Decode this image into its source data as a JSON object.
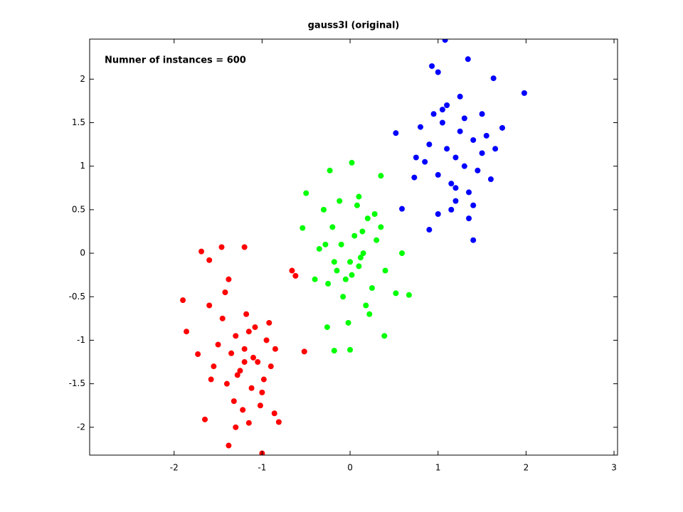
{
  "chart_data": {
    "type": "scatter",
    "title": "gauss3l (original)",
    "annotation": "Numner of instances = 600",
    "xlim": [
      -2.96,
      3.04
    ],
    "ylim": [
      -2.32,
      2.46
    ],
    "xticks": [
      -2,
      -1,
      0,
      1,
      2,
      3
    ],
    "yticks": [
      -2,
      -1.5,
      -1,
      -0.5,
      0,
      0.5,
      1,
      1.5,
      2
    ],
    "grid": false,
    "series": [
      {
        "color": "#ff0000",
        "x": [
          -1.9,
          -1.86,
          -1.69,
          -1.6,
          -1.46,
          -1.2,
          -1.0,
          -1.38,
          -1.65,
          -1.73,
          -1.58,
          -0.66,
          -0.62,
          -0.52,
          -0.81,
          -0.86,
          -1.2,
          -1.1,
          -1.3,
          -1.25,
          -1.15,
          -1.05,
          -1.35,
          -1.4,
          -0.95,
          -0.9,
          -1.5,
          -1.45,
          -1.0,
          -1.28,
          -1.12,
          -1.18,
          -1.32,
          -1.08,
          -0.98,
          -1.22,
          -1.55,
          -0.85,
          -1.6,
          -1.42,
          -1.02,
          -1.3,
          -1.15,
          -0.92,
          -1.38,
          -1.2
        ],
        "values": [
          -0.54,
          -0.9,
          0.02,
          -0.08,
          0.07,
          0.07,
          -2.3,
          -2.21,
          -1.91,
          -1.16,
          -1.45,
          -0.2,
          -0.26,
          -1.13,
          -1.94,
          -1.84,
          -1.1,
          -1.2,
          -0.95,
          -1.35,
          -0.9,
          -1.25,
          -1.15,
          -1.5,
          -1.0,
          -1.3,
          -1.05,
          -0.75,
          -1.6,
          -1.4,
          -1.55,
          -0.7,
          -1.7,
          -0.85,
          -1.45,
          -1.8,
          -1.3,
          -1.1,
          -0.6,
          -0.45,
          -1.75,
          -2.0,
          -1.95,
          -0.8,
          -0.3,
          -1.25
        ]
      },
      {
        "color": "#00ff00",
        "x": [
          -0.23,
          0.02,
          0.35,
          -0.5,
          -0.54,
          0.67,
          0.52,
          0.39,
          -0.18,
          0.0,
          -0.26,
          0.59,
          0.0,
          0.1,
          -0.1,
          0.05,
          -0.05,
          0.15,
          -0.15,
          0.2,
          -0.2,
          0.12,
          0.25,
          -0.25,
          0.3,
          -0.3,
          0.08,
          -0.08,
          0.18,
          -0.12,
          0.02,
          0.35,
          -0.35,
          0.22,
          -0.4,
          0.4,
          0.1,
          -0.18,
          0.28,
          -0.02,
          0.14,
          -0.28
        ],
        "values": [
          0.95,
          1.04,
          0.89,
          0.69,
          0.29,
          -0.48,
          -0.46,
          -0.95,
          -1.12,
          -1.11,
          -0.85,
          0.0,
          -0.1,
          -0.15,
          0.1,
          0.2,
          -0.3,
          0.0,
          -0.2,
          0.4,
          0.3,
          -0.05,
          -0.4,
          -0.35,
          0.15,
          0.5,
          0.55,
          -0.5,
          -0.6,
          0.6,
          -0.25,
          0.3,
          0.05,
          -0.7,
          -0.3,
          -0.2,
          0.65,
          -0.1,
          0.45,
          -0.8,
          0.25,
          0.1
        ]
      },
      {
        "color": "#0000ff",
        "x": [
          1.08,
          0.93,
          1.0,
          1.34,
          1.63,
          1.98,
          0.52,
          0.59,
          0.9,
          1.4,
          1.73,
          0.73,
          1.2,
          1.1,
          1.3,
          1.0,
          1.4,
          1.15,
          1.25,
          0.9,
          1.5,
          1.05,
          1.35,
          0.95,
          1.45,
          1.2,
          1.1,
          1.3,
          0.85,
          1.55,
          1.6,
          1.0,
          1.25,
          1.15,
          0.8,
          1.4,
          1.65,
          1.05,
          1.35,
          1.2,
          0.75,
          1.5
        ],
        "values": [
          2.45,
          2.15,
          2.08,
          2.23,
          2.01,
          1.84,
          1.38,
          0.51,
          0.27,
          0.15,
          1.44,
          0.87,
          1.1,
          1.2,
          1.0,
          0.9,
          1.3,
          0.8,
          1.4,
          1.25,
          1.15,
          1.5,
          0.7,
          1.6,
          0.95,
          0.6,
          1.7,
          1.55,
          1.05,
          1.35,
          0.85,
          0.45,
          1.8,
          0.5,
          1.45,
          0.55,
          1.2,
          1.65,
          0.4,
          0.75,
          1.1,
          1.6
        ]
      }
    ]
  }
}
